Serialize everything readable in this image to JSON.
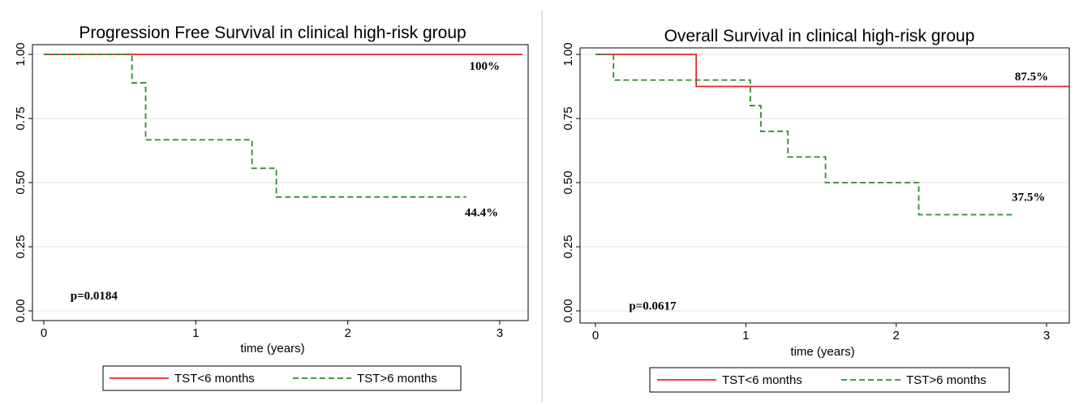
{
  "chart_data": [
    {
      "type": "line",
      "title": "Progression Free Survival in clinical high-risk group",
      "xlabel": "time (years)",
      "ylabel": "",
      "xlim": [
        0,
        3.1
      ],
      "ylim": [
        0,
        1
      ],
      "x_ticks": [
        "0",
        "1",
        "2",
        "3"
      ],
      "y_ticks": [
        "0.00",
        "0.25",
        "0.50",
        "0.75",
        "1.00"
      ],
      "grid": true,
      "legend_position": "bottom",
      "series": [
        {
          "name": "TST<6 months",
          "color": "#e8262b",
          "style": "solid",
          "steps": [
            [
              0,
              1.0
            ],
            [
              3.15,
              1.0
            ]
          ]
        },
        {
          "name": "TST>6 months",
          "color": "#2e8b2e",
          "style": "dashed",
          "steps": [
            [
              0,
              1.0
            ],
            [
              0.58,
              0.889
            ],
            [
              0.67,
              0.667
            ],
            [
              1.37,
              0.556
            ],
            [
              1.53,
              0.444
            ],
            [
              2.78,
              0.444
            ]
          ]
        }
      ],
      "annotations": [
        {
          "text": "100%",
          "x": 2.9,
          "y": 0.955
        },
        {
          "text": "44.4%",
          "x": 2.88,
          "y": 0.385
        },
        {
          "text": "p=0.0184",
          "x": 0.33,
          "y": 0.06
        }
      ]
    },
    {
      "type": "line",
      "title": "Overall Survival in clinical high-risk group",
      "xlabel": "time (years)",
      "ylabel": "",
      "xlim": [
        0,
        3.1
      ],
      "ylim": [
        0,
        1
      ],
      "x_ticks": [
        "0",
        "1",
        "2",
        "3"
      ],
      "y_ticks": [
        "0.00",
        "0.25",
        "0.50",
        "0.75",
        "1.00"
      ],
      "grid": true,
      "legend_position": "bottom",
      "series": [
        {
          "name": "TST<6 months",
          "color": "#e8262b",
          "style": "solid",
          "steps": [
            [
              0,
              1.0
            ],
            [
              0.67,
              0.875
            ],
            [
              3.15,
              0.875
            ]
          ]
        },
        {
          "name": "TST>6 months",
          "color": "#2e8b2e",
          "style": "dashed",
          "steps": [
            [
              0,
              1.0
            ],
            [
              0.12,
              0.9
            ],
            [
              1.03,
              0.8
            ],
            [
              1.1,
              0.7
            ],
            [
              1.28,
              0.6
            ],
            [
              1.53,
              0.5
            ],
            [
              2.15,
              0.375
            ],
            [
              2.78,
              0.375
            ]
          ]
        }
      ],
      "annotations": [
        {
          "text": "87.5%",
          "x": 2.9,
          "y": 0.915
        },
        {
          "text": "37.5%",
          "x": 2.88,
          "y": 0.445
        },
        {
          "text": "p=0.0617",
          "x": 0.38,
          "y": 0.02
        }
      ]
    }
  ]
}
